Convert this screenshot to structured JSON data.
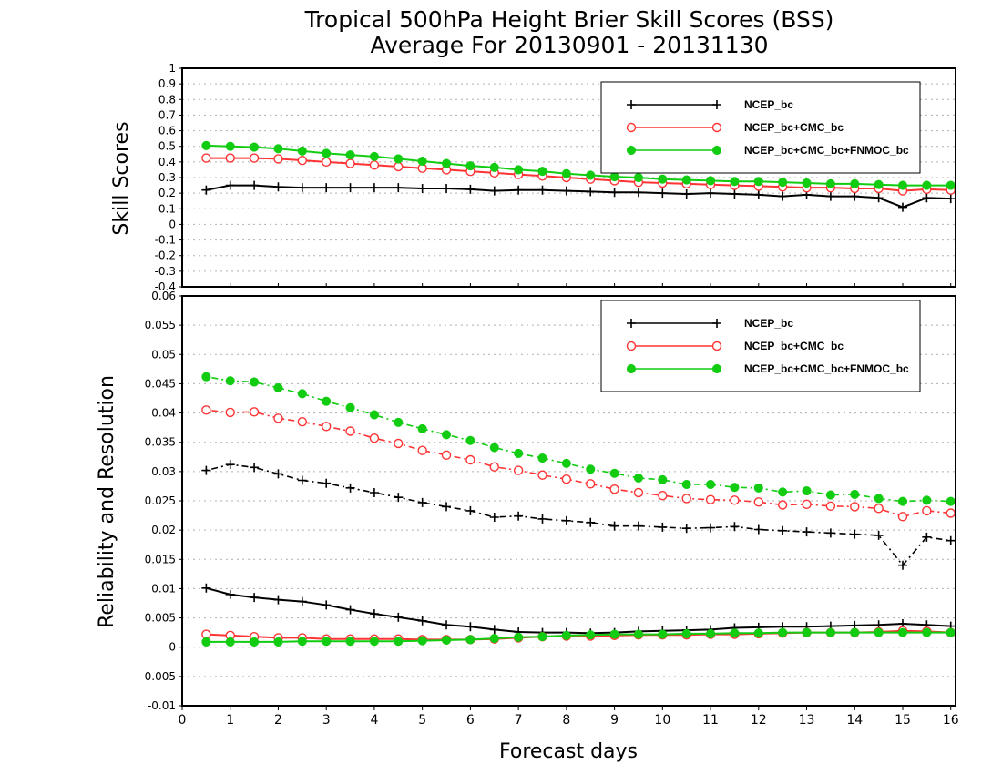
{
  "chart_data": [
    {
      "type": "line",
      "title": [
        "Tropical 500hPa Height Brier Skill Scores (BSS)",
        "Average For 20130901 - 20131130"
      ],
      "ylabel": "Skill Scores",
      "xlabel": "",
      "xlim": [
        0,
        16.1
      ],
      "ylim": [
        -0.4,
        1
      ],
      "yticks": [
        "-0.4",
        "-0.3",
        "-0.2",
        "-0.1",
        "0",
        "0.1",
        "0.2",
        "0.3",
        "0.4",
        "0.5",
        "0.6",
        "0.7",
        "0.8",
        "0.9",
        "1"
      ],
      "grid": true,
      "legend_position": "top-right",
      "x": [
        0.5,
        1,
        1.5,
        2,
        2.5,
        3,
        3.5,
        4,
        4.5,
        5,
        5.5,
        6,
        6.5,
        7,
        7.5,
        8,
        8.5,
        9,
        9.5,
        10,
        10.5,
        11,
        11.5,
        12,
        12.5,
        13,
        13.5,
        14,
        14.5,
        15,
        15.5,
        16
      ],
      "series": [
        {
          "name": "NCEP_bc",
          "color": "#000000",
          "marker": "plus",
          "style": "solid",
          "values": [
            0.22,
            0.25,
            0.25,
            0.24,
            0.235,
            0.235,
            0.235,
            0.235,
            0.235,
            0.23,
            0.23,
            0.225,
            0.215,
            0.22,
            0.22,
            0.215,
            0.21,
            0.205,
            0.205,
            0.2,
            0.195,
            0.2,
            0.195,
            0.19,
            0.18,
            0.19,
            0.18,
            0.18,
            0.17,
            0.11,
            0.17,
            0.165
          ]
        },
        {
          "name": "NCEP_bc+CMC_bc",
          "color": "#ff3333",
          "marker": "open-circle",
          "style": "solid",
          "values": [
            0.425,
            0.425,
            0.425,
            0.42,
            0.41,
            0.4,
            0.39,
            0.38,
            0.37,
            0.36,
            0.35,
            0.34,
            0.33,
            0.32,
            0.31,
            0.3,
            0.29,
            0.28,
            0.27,
            0.265,
            0.26,
            0.255,
            0.25,
            0.245,
            0.24,
            0.235,
            0.235,
            0.23,
            0.23,
            0.215,
            0.225,
            0.22
          ]
        },
        {
          "name": "NCEP_bc+CMC_bc+FNMOC_bc",
          "color": "#11cc11",
          "marker": "filled-circle",
          "style": "solid",
          "values": [
            0.505,
            0.5,
            0.495,
            0.485,
            0.47,
            0.455,
            0.445,
            0.435,
            0.42,
            0.405,
            0.39,
            0.375,
            0.365,
            0.35,
            0.34,
            0.325,
            0.315,
            0.305,
            0.3,
            0.29,
            0.285,
            0.28,
            0.275,
            0.275,
            0.27,
            0.265,
            0.26,
            0.26,
            0.255,
            0.25,
            0.25,
            0.25
          ]
        }
      ]
    },
    {
      "type": "line",
      "ylabel": "Reliability and Resolution",
      "xlabel": "Forecast days",
      "xlim": [
        0,
        16.1
      ],
      "ylim": [
        -0.01,
        0.06
      ],
      "yticks": [
        "-0.01",
        "-0.005",
        "0",
        "0.005",
        "0.01",
        "0.015",
        "0.02",
        "0.025",
        "0.03",
        "0.035",
        "0.04",
        "0.045",
        "0.05",
        "0.055",
        "0.06"
      ],
      "xticks": [
        "0",
        "1",
        "2",
        "3",
        "4",
        "5",
        "6",
        "7",
        "8",
        "9",
        "10",
        "11",
        "12",
        "13",
        "14",
        "15",
        "16"
      ],
      "grid": true,
      "legend_position": "top-right",
      "x": [
        0.5,
        1,
        1.5,
        2,
        2.5,
        3,
        3.5,
        4,
        4.5,
        5,
        5.5,
        6,
        6.5,
        7,
        7.5,
        8,
        8.5,
        9,
        9.5,
        10,
        10.5,
        11,
        11.5,
        12,
        12.5,
        13,
        13.5,
        14,
        14.5,
        15,
        15.5,
        16
      ],
      "series": [
        {
          "name": "NCEP_bc",
          "color": "#000000",
          "marker": "plus",
          "style": "dashdot",
          "metric": "resolution",
          "values": [
            0.0302,
            0.0312,
            0.0307,
            0.0296,
            0.0285,
            0.028,
            0.0272,
            0.0264,
            0.0256,
            0.0247,
            0.024,
            0.0233,
            0.0222,
            0.0224,
            0.0219,
            0.0216,
            0.0213,
            0.0207,
            0.0207,
            0.0205,
            0.0203,
            0.0204,
            0.0206,
            0.0201,
            0.0199,
            0.0197,
            0.0195,
            0.0193,
            0.0191,
            0.014,
            0.0188,
            0.0182
          ]
        },
        {
          "name": "NCEP_bc+CMC_bc",
          "color": "#ff3333",
          "marker": "open-circle",
          "style": "dashdot",
          "metric": "resolution",
          "values": [
            0.0405,
            0.0401,
            0.0402,
            0.0391,
            0.0385,
            0.0377,
            0.0369,
            0.0357,
            0.0348,
            0.0336,
            0.0328,
            0.032,
            0.0308,
            0.0302,
            0.0294,
            0.0287,
            0.0279,
            0.027,
            0.0264,
            0.0259,
            0.0254,
            0.0252,
            0.0251,
            0.0248,
            0.0243,
            0.0244,
            0.0241,
            0.024,
            0.0237,
            0.0223,
            0.0233,
            0.0229
          ]
        },
        {
          "name": "NCEP_bc+CMC_bc+FNMOC_bc",
          "color": "#11cc11",
          "marker": "filled-circle",
          "style": "dashdot",
          "metric": "resolution",
          "values": [
            0.0462,
            0.0455,
            0.0453,
            0.0443,
            0.0433,
            0.042,
            0.0409,
            0.0397,
            0.0384,
            0.0373,
            0.0363,
            0.0353,
            0.0341,
            0.0331,
            0.0323,
            0.0314,
            0.0304,
            0.0297,
            0.0289,
            0.0286,
            0.0278,
            0.0278,
            0.0273,
            0.0272,
            0.0265,
            0.0267,
            0.026,
            0.0261,
            0.0254,
            0.0249,
            0.0251,
            0.0249
          ]
        },
        {
          "name": "NCEP_bc",
          "color": "#000000",
          "marker": "plus",
          "style": "solid",
          "metric": "reliability",
          "values": [
            0.0101,
            0.009,
            0.0085,
            0.0081,
            0.0078,
            0.0072,
            0.0064,
            0.0057,
            0.0051,
            0.0045,
            0.0038,
            0.0035,
            0.003,
            0.0026,
            0.0025,
            0.0025,
            0.0024,
            0.0025,
            0.0027,
            0.0028,
            0.0029,
            0.003,
            0.0033,
            0.0034,
            0.0035,
            0.0035,
            0.0036,
            0.0037,
            0.0038,
            0.004,
            0.0038,
            0.0036
          ]
        },
        {
          "name": "NCEP_bc+CMC_bc",
          "color": "#ff3333",
          "marker": "open-circle",
          "style": "solid",
          "metric": "reliability",
          "values": [
            0.0022,
            0.002,
            0.0018,
            0.0016,
            0.0016,
            0.0014,
            0.0014,
            0.0014,
            0.0014,
            0.0013,
            0.0013,
            0.0013,
            0.0014,
            0.0016,
            0.0018,
            0.0019,
            0.0019,
            0.002,
            0.0021,
            0.0021,
            0.0021,
            0.0022,
            0.0022,
            0.0023,
            0.0024,
            0.0025,
            0.0025,
            0.0025,
            0.0026,
            0.0028,
            0.0027,
            0.0025
          ]
        },
        {
          "name": "NCEP_bc+CMC_bc+FNMOC_bc",
          "color": "#11cc11",
          "marker": "filled-circle",
          "style": "solid",
          "metric": "reliability",
          "values": [
            0.0009,
            0.0009,
            0.0009,
            0.0009,
            0.001,
            0.001,
            0.001,
            0.001,
            0.001,
            0.0011,
            0.0012,
            0.0013,
            0.0015,
            0.0017,
            0.0018,
            0.002,
            0.0021,
            0.0022,
            0.0022,
            0.0022,
            0.0023,
            0.0023,
            0.0024,
            0.0024,
            0.0025,
            0.0025,
            0.0025,
            0.0025,
            0.0025,
            0.0025,
            0.0025,
            0.0025
          ]
        }
      ]
    }
  ]
}
